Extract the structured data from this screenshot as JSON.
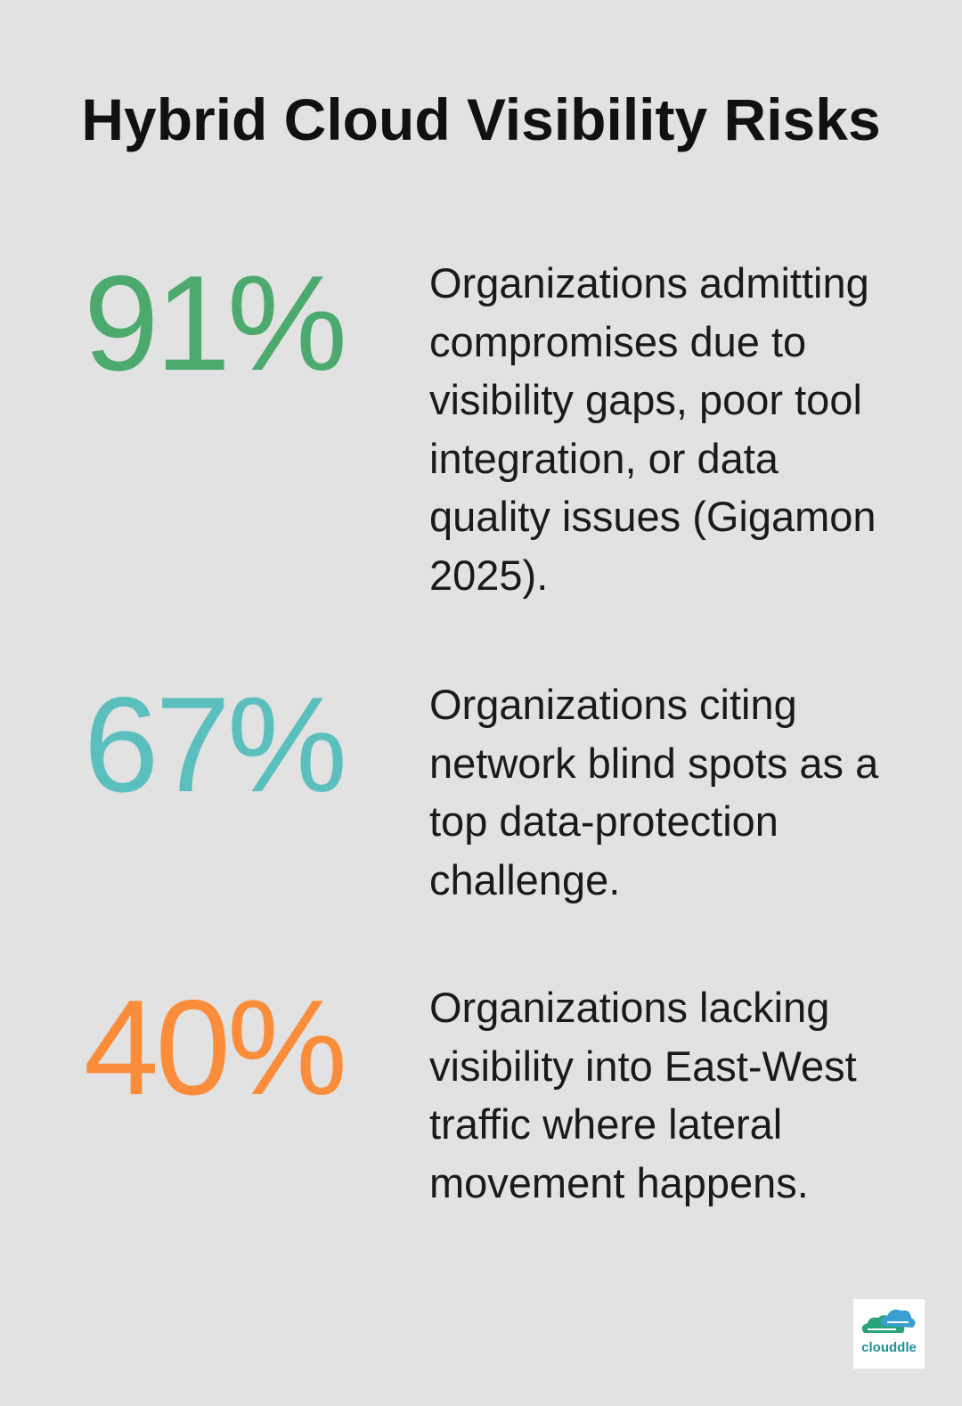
{
  "header": {
    "title": "Hybrid Cloud Visibility Risks"
  },
  "stats": [
    {
      "value": "91%",
      "color": "#4caa6e",
      "text": "Organizations admitting compromises due to visibility gaps, poor tool integration, or data quality issues (Gigamon 2025)."
    },
    {
      "value": "67%",
      "color": "#5bbfbe",
      "text": "Organizations citing network blind spots as a top data-protection challenge."
    },
    {
      "value": "40%",
      "color": "#fb8c3a",
      "text": "Organizations lacking visibility into East-West traffic where lateral movement happens."
    }
  ],
  "logo": {
    "text": "clouddle"
  }
}
